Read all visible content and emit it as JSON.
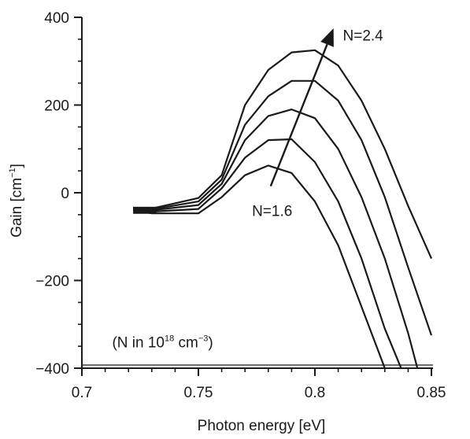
{
  "chart_data": {
    "type": "line",
    "title": "",
    "xlabel": "Photon energy [eV]",
    "ylabel_main": "Gain [cm",
    "ylabel_exp": "−1",
    "ylabel_close": "]",
    "xlim": [
      0.7,
      0.85
    ],
    "ylim": [
      -400,
      400
    ],
    "x_ticks": [
      0.7,
      0.75,
      0.8,
      0.85
    ],
    "x_tick_labels": [
      "0.7",
      "0.75",
      "0.8",
      "0.85"
    ],
    "y_ticks": [
      400,
      200,
      0,
      -200,
      -400
    ],
    "y_tick_labels": [
      "400",
      "200",
      "0",
      "−200",
      "−400"
    ],
    "grid": false,
    "series": [
      {
        "x": [
          0.722,
          0.73,
          0.75,
          0.76,
          0.77,
          0.78,
          0.79,
          0.8,
          0.81,
          0.82,
          0.83
        ],
        "y": [
          -40,
          -47,
          -47,
          -10,
          40,
          62,
          45,
          -20,
          -120,
          -260,
          -400
        ]
      },
      {
        "x": [
          0.722,
          0.73,
          0.75,
          0.76,
          0.77,
          0.78,
          0.79,
          0.8,
          0.81,
          0.82,
          0.83,
          0.837
        ],
        "y": [
          -38,
          -43,
          -37,
          10,
          80,
          120,
          122,
          70,
          -20,
          -150,
          -310,
          -400
        ]
      },
      {
        "x": [
          0.722,
          0.73,
          0.75,
          0.76,
          0.77,
          0.78,
          0.79,
          0.8,
          0.81,
          0.82,
          0.83,
          0.84,
          0.844
        ],
        "y": [
          -36,
          -40,
          -28,
          20,
          120,
          175,
          190,
          170,
          100,
          -10,
          -150,
          -320,
          -400
        ]
      },
      {
        "x": [
          0.722,
          0.73,
          0.75,
          0.76,
          0.77,
          0.78,
          0.79,
          0.8,
          0.81,
          0.82,
          0.83,
          0.84,
          0.85
        ],
        "y": [
          -35,
          -38,
          -20,
          30,
          155,
          220,
          255,
          255,
          210,
          120,
          -10,
          -170,
          -325
        ]
      },
      {
        "x": [
          0.722,
          0.73,
          0.75,
          0.76,
          0.77,
          0.78,
          0.79,
          0.8,
          0.81,
          0.82,
          0.83,
          0.84,
          0.85
        ],
        "y": [
          -34,
          -36,
          -12,
          40,
          200,
          280,
          320,
          325,
          290,
          210,
          100,
          -30,
          -150
        ]
      }
    ],
    "arrow": {
      "from": [
        0.781,
        15
      ],
      "to": [
        0.808,
        375
      ]
    },
    "annotations": {
      "n_low": {
        "text": "N=1.6",
        "x": 0.773,
        "y": -40
      },
      "n_high": {
        "text": "N=2.4",
        "x": 0.812,
        "y": 360
      },
      "units": {
        "prefix": "(N in 10",
        "exp1": "18",
        "mid": " cm",
        "exp2": "−3",
        "suffix": ")",
        "x": 0.713,
        "y": -340
      }
    }
  }
}
